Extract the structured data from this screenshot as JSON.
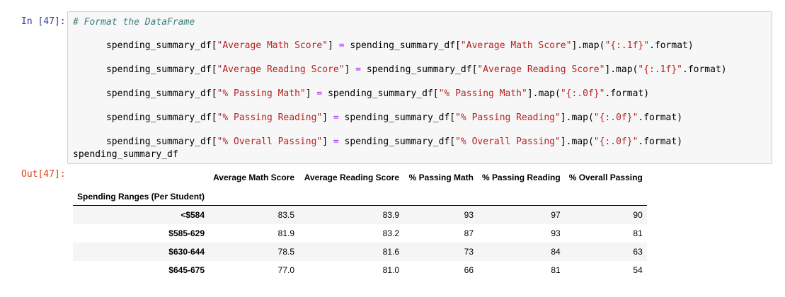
{
  "input_prompt": "In [47]:",
  "output_prompt": "Out[47]:",
  "code": {
    "comment": "# Format the DataFrame",
    "lines": [
      {
        "target": "spending_summary_df",
        "col": "\"Average Math Score\"",
        "fmt": "\"{:.1f}\""
      },
      {
        "target": "spending_summary_df",
        "col": "\"Average Reading Score\"",
        "fmt": "\"{:.1f}\""
      },
      {
        "target": "spending_summary_df",
        "col": "\"% Passing Math\"",
        "fmt": "\"{:.0f}\""
      },
      {
        "target": "spending_summary_df",
        "col": "\"% Passing Reading\"",
        "fmt": "\"{:.0f}\""
      },
      {
        "target": "spending_summary_df",
        "col": "\"% Overall Passing\"",
        "fmt": "\"{:.0f}\""
      }
    ],
    "final_line": "spending_summary_df",
    "tokens": {
      "lbracket": "[",
      "rbracket": "]",
      "assign": " = ",
      "map_call": ".map(",
      "format_call": ".format)"
    }
  },
  "table": {
    "index_name": "Spending Ranges (Per Student)",
    "columns": [
      "Average Math Score",
      "Average Reading Score",
      "% Passing Math",
      "% Passing Reading",
      "% Overall Passing"
    ],
    "rows": [
      {
        "index": "<$584",
        "values": [
          "83.5",
          "83.9",
          "93",
          "97",
          "90"
        ]
      },
      {
        "index": "$585-629",
        "values": [
          "81.9",
          "83.2",
          "87",
          "93",
          "81"
        ]
      },
      {
        "index": "$630-644",
        "values": [
          "78.5",
          "81.6",
          "73",
          "84",
          "63"
        ]
      },
      {
        "index": "$645-675",
        "values": [
          "77.0",
          "81.0",
          "66",
          "81",
          "54"
        ]
      }
    ]
  }
}
